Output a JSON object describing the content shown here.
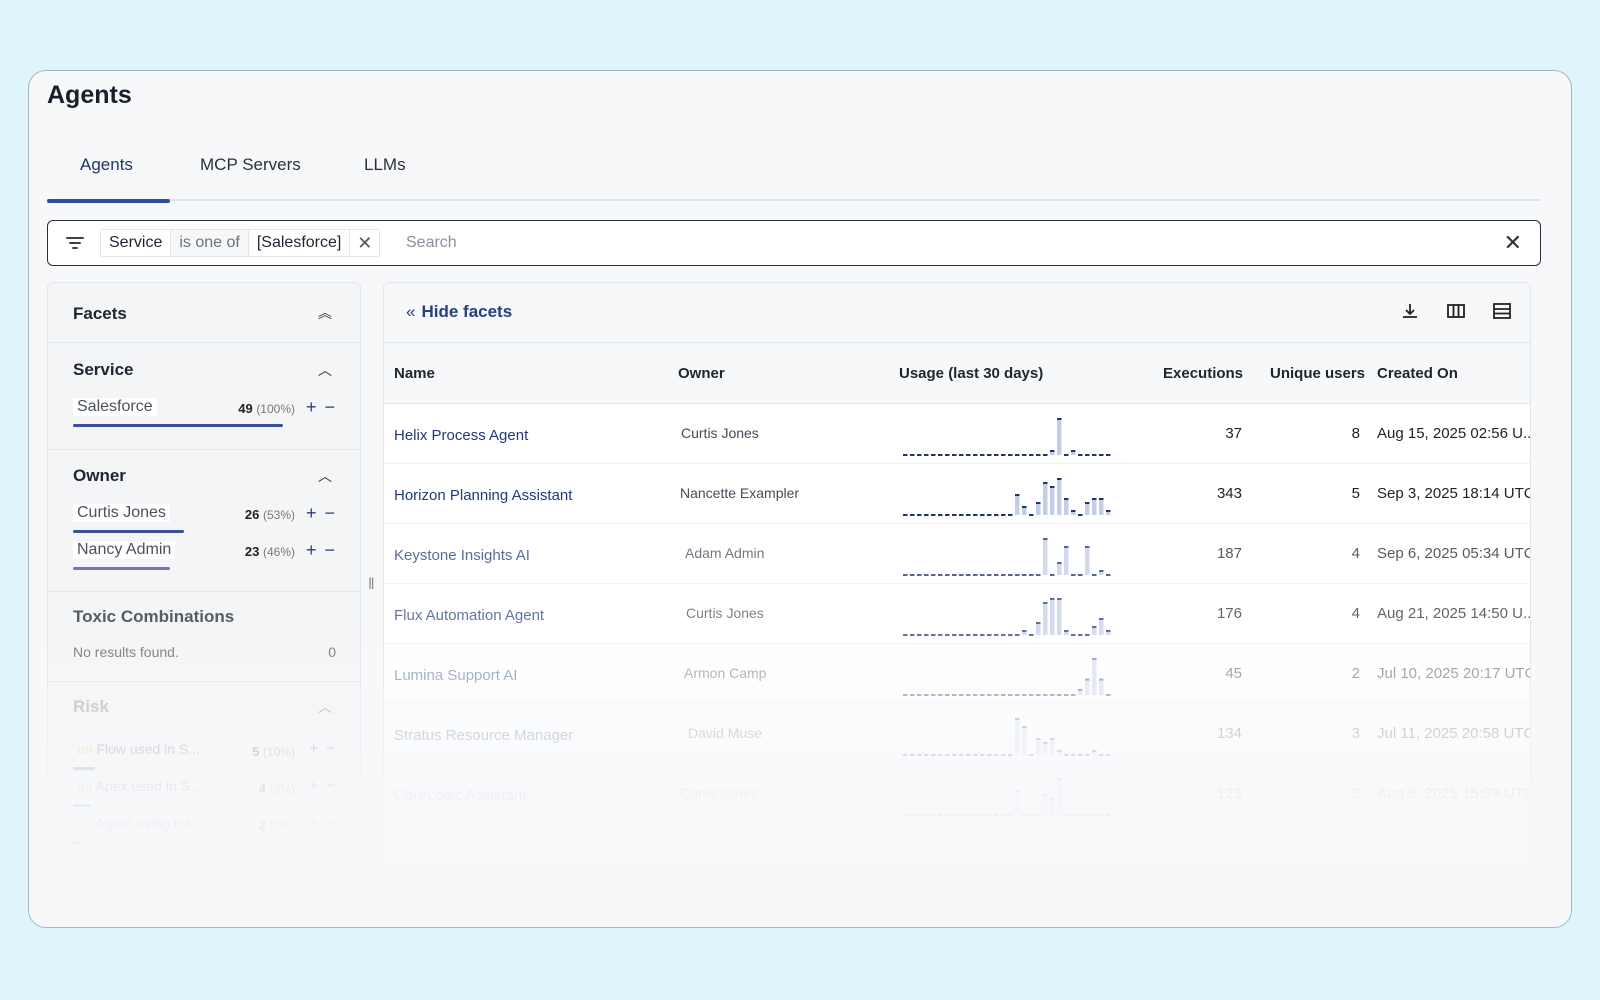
{
  "page": {
    "title": "Agents"
  },
  "tabs": [
    {
      "label": "Agents",
      "active": true
    },
    {
      "label": "MCP Servers",
      "active": false
    },
    {
      "label": "LLMs",
      "active": false
    }
  ],
  "filter": {
    "key": "Service",
    "operator": "is one of",
    "value": "[Salesforce]",
    "search_placeholder": "Search",
    "search_value": ""
  },
  "facets": {
    "title": "Facets",
    "service": {
      "title": "Service",
      "items": [
        {
          "label": "Salesforce",
          "count": "49",
          "pct": "(100%)",
          "fraction": 1.0
        }
      ]
    },
    "owner": {
      "title": "Owner",
      "items": [
        {
          "label": "Curtis Jones",
          "count": "26",
          "pct": "(53%)",
          "fraction": 0.53
        },
        {
          "label": "Nancy Admin",
          "count": "23",
          "pct": "(46%)",
          "fraction": 0.46
        }
      ]
    },
    "toxic": {
      "title": "Toxic Combinations",
      "empty_text": "No results found.",
      "count": "0"
    },
    "risk": {
      "title": "Risk",
      "items": [
        {
          "label": "Flow used in S...",
          "count": "5",
          "pct": "(10%)",
          "fraction": 0.1
        },
        {
          "label": "Apex used in S...",
          "count": "4",
          "pct": "(8%)",
          "fraction": 0.08
        },
        {
          "label": "Agent using Ha...",
          "count": "2",
          "pct": "(4%)",
          "fraction": 0.04
        }
      ]
    },
    "llm": {
      "title": "LLM Models"
    }
  },
  "table": {
    "hide_facets_label": "Hide facets",
    "columns": {
      "name": "Name",
      "owner": "Owner",
      "usage": "Usage (last 30 days)",
      "executions": "Executions",
      "unique_users": "Unique users",
      "created_on": "Created On"
    },
    "rows": [
      {
        "name": "Helix Process Agent",
        "owner": "Curtis Jones",
        "executions": "37",
        "unique_users": "8",
        "created_on": "Aug 15, 2025 02:56 U...",
        "usage": [
          0,
          0,
          0,
          0,
          0,
          0,
          0,
          0,
          0,
          0,
          0,
          0,
          0,
          0,
          0,
          0,
          0,
          0,
          0,
          0,
          0,
          1,
          9,
          0,
          1,
          0,
          0,
          0,
          0,
          0
        ]
      },
      {
        "name": "Horizon Planning Assistant",
        "owner": "Nancette Exampler",
        "executions": "343",
        "unique_users": "5",
        "created_on": "Sep 3, 2025 18:14 UTC",
        "usage": [
          0,
          0,
          0,
          0,
          0,
          0,
          0,
          0,
          0,
          0,
          0,
          0,
          0,
          0,
          0,
          0,
          5,
          2,
          0,
          3,
          8,
          7,
          9,
          4,
          1,
          0,
          3,
          4,
          4,
          1
        ]
      },
      {
        "name": "Keystone Insights AI",
        "owner": "Adam Admin",
        "executions": "187",
        "unique_users": "4",
        "created_on": "Sep 6, 2025 05:34 UTC",
        "usage": [
          0,
          0,
          0,
          0,
          0,
          0,
          0,
          0,
          0,
          0,
          0,
          0,
          0,
          0,
          0,
          0,
          0,
          0,
          0,
          0,
          9,
          0,
          3,
          7,
          0,
          0,
          7,
          0,
          1,
          0
        ]
      },
      {
        "name": "Flux Automation Agent",
        "owner": "Curtis Jones",
        "executions": "176",
        "unique_users": "4",
        "created_on": "Aug 21, 2025 14:50 U...",
        "usage": [
          0,
          0,
          0,
          0,
          0,
          0,
          0,
          0,
          0,
          0,
          0,
          0,
          0,
          0,
          0,
          0,
          0,
          1,
          0,
          3,
          8,
          9,
          9,
          1,
          0,
          0,
          0,
          2,
          4,
          1
        ]
      },
      {
        "name": "Lumina Support AI",
        "owner": "Armon Camp",
        "executions": "45",
        "unique_users": "2",
        "created_on": "Jul 10, 2025 20:17 UTC",
        "usage": [
          0,
          0,
          0,
          0,
          0,
          0,
          0,
          0,
          0,
          0,
          0,
          0,
          0,
          0,
          0,
          0,
          0,
          0,
          0,
          0,
          0,
          0,
          0,
          0,
          0,
          1,
          3,
          7,
          3,
          0
        ]
      },
      {
        "name": "Stratus Resource Manager",
        "owner": "David Muse",
        "executions": "134",
        "unique_users": "3",
        "created_on": "Jul 11, 2025 20:58 UTC",
        "usage": [
          0,
          0,
          0,
          0,
          0,
          0,
          0,
          0,
          0,
          0,
          0,
          0,
          0,
          0,
          0,
          0,
          9,
          7,
          0,
          4,
          3,
          4,
          1,
          0,
          0,
          0,
          0,
          1,
          0,
          0
        ]
      },
      {
        "name": "CoreLogic Assistant",
        "owner": "Curtis Jones",
        "executions": "123",
        "unique_users": "3",
        "created_on": "Aug 5, 2025 15:39 UTC",
        "usage": [
          0,
          0,
          0,
          0,
          0,
          0,
          0,
          0,
          0,
          0,
          0,
          0,
          0,
          0,
          0,
          0,
          6,
          0,
          0,
          0,
          5,
          4,
          9,
          0,
          0,
          0,
          0,
          0,
          0,
          0
        ]
      }
    ]
  },
  "colors": {
    "accent": "#2d4e9a",
    "spark_bar": "#c3cde8",
    "spark_cap": "#22346e",
    "background": "#dff4fb"
  }
}
